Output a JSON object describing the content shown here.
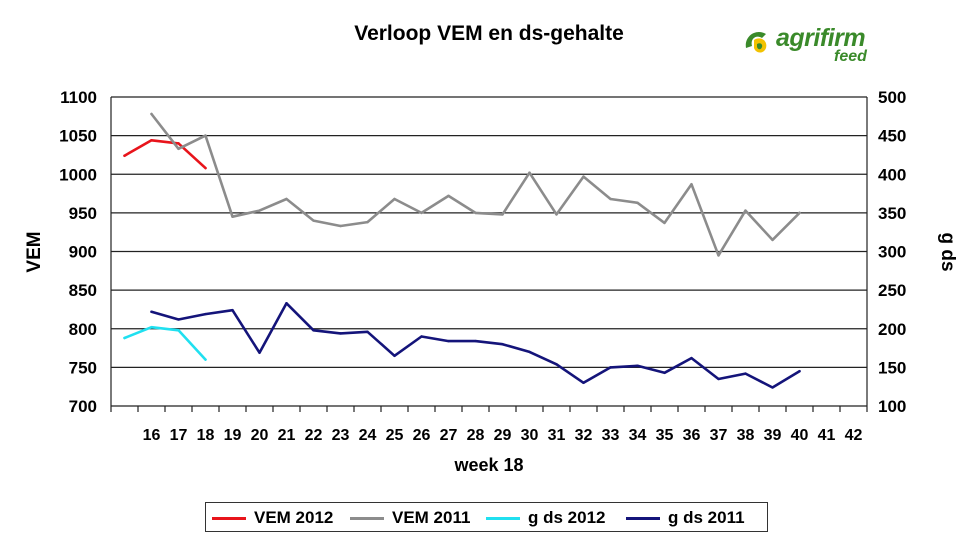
{
  "chart_data": {
    "type": "line",
    "title": "Verloop VEM en ds-gehalte",
    "xlabel": "week 18",
    "ylabel": "VEM",
    "y2label": "g ds",
    "categories": [
      "",
      "16",
      "17",
      "18",
      "19",
      "20",
      "21",
      "22",
      "23",
      "24",
      "25",
      "26",
      "27",
      "28",
      "29",
      "30",
      "31",
      "32",
      "33",
      "34",
      "35",
      "36",
      "37",
      "38",
      "39",
      "40",
      "41",
      "42"
    ],
    "ylim": [
      700,
      1100
    ],
    "yticks": [
      700,
      750,
      800,
      850,
      900,
      950,
      1000,
      1050,
      1100
    ],
    "y2lim": [
      100,
      500
    ],
    "y2ticks": [
      100,
      150,
      200,
      250,
      300,
      350,
      400,
      450,
      500
    ],
    "grid": true,
    "legend_position": "bottom",
    "series": [
      {
        "name": "VEM 2012",
        "axis": "left",
        "color": "#e8141b",
        "x": [
          "15",
          "16",
          "17",
          "18"
        ],
        "values": [
          1024,
          1044,
          1040,
          1008
        ]
      },
      {
        "name": "VEM 2011",
        "axis": "left",
        "color": "#8c8c8c",
        "x": [
          "16",
          "17",
          "18",
          "19",
          "20",
          "21",
          "22",
          "23",
          "24",
          "25",
          "26",
          "27",
          "28",
          "29",
          "30",
          "31",
          "32",
          "33",
          "34",
          "35",
          "36",
          "37",
          "38",
          "39",
          "40"
        ],
        "values": [
          1078,
          1033,
          1050,
          945,
          953,
          968,
          940,
          933,
          938,
          968,
          950,
          972,
          950,
          948,
          1002,
          948,
          997,
          968,
          963,
          937,
          987,
          895,
          953,
          915,
          950
        ]
      },
      {
        "name": "g ds 2012",
        "axis": "right",
        "color": "#20e0f0",
        "x": [
          "15",
          "16",
          "17",
          "18"
        ],
        "values": [
          188,
          202,
          198,
          160
        ]
      },
      {
        "name": "g ds 2011",
        "axis": "right",
        "color": "#14147a",
        "x": [
          "16",
          "17",
          "18",
          "19",
          "20",
          "21",
          "22",
          "23",
          "24",
          "25",
          "26",
          "27",
          "28",
          "29",
          "30",
          "31",
          "32",
          "33",
          "34",
          "35",
          "36",
          "37",
          "38",
          "39",
          "40"
        ],
        "values": [
          222,
          212,
          219,
          224,
          169,
          233,
          198,
          194,
          196,
          165,
          190,
          184,
          184,
          180,
          170,
          154,
          130,
          150,
          152,
          143,
          162,
          135,
          142,
          124,
          145
        ]
      }
    ]
  },
  "logo": {
    "text": "agrifirm",
    "sub": "feed",
    "color": "#3a8a2a",
    "accent": "#f2c200"
  }
}
